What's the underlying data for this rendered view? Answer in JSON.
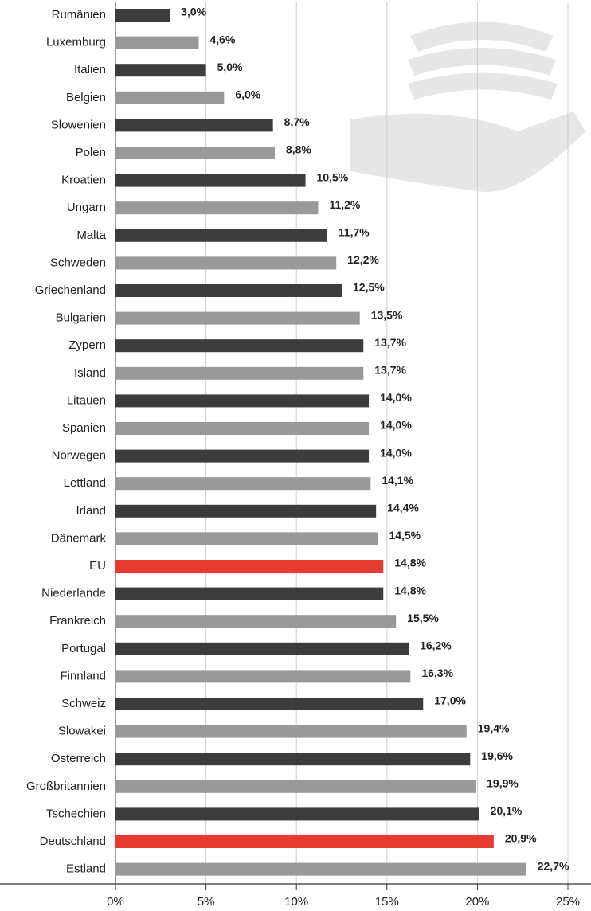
{
  "chart_data": {
    "type": "hbar",
    "categories": [
      "Rumänien",
      "Luxemburg",
      "Italien",
      "Belgien",
      "Slowenien",
      "Polen",
      "Kroatien",
      "Ungarn",
      "Malta",
      "Schweden",
      "Griechenland",
      "Bulgarien",
      "Zypern",
      "Island",
      "Litauen",
      "Spanien",
      "Norwegen",
      "Lettland",
      "Irland",
      "Dänemark",
      "EU",
      "Niederlande",
      "Frankreich",
      "Portugal",
      "Finnland",
      "Schweiz",
      "Slowakei",
      "Österreich",
      "Großbritannien",
      "Tschechien",
      "Deutschland",
      "Estland"
    ],
    "values": [
      3.0,
      4.6,
      5.0,
      6.0,
      8.7,
      8.8,
      10.5,
      11.2,
      11.7,
      12.2,
      12.5,
      13.5,
      13.7,
      13.7,
      14.0,
      14.0,
      14.0,
      14.1,
      14.4,
      14.5,
      14.8,
      14.8,
      15.5,
      16.2,
      16.3,
      17.0,
      19.4,
      19.6,
      19.9,
      20.1,
      20.9,
      22.7
    ],
    "value_labels": [
      "3,0%",
      "4,6%",
      "5,0%",
      "6,0%",
      "8,7%",
      "8,8%",
      "10,5%",
      "11,2%",
      "11,7%",
      "12,2%",
      "12,5%",
      "13,5%",
      "13,7%",
      "13,7%",
      "14,0%",
      "14,0%",
      "14,0%",
      "14,1%",
      "14,4%",
      "14,5%",
      "14,8%",
      "14,8%",
      "15,5%",
      "16,2%",
      "16,3%",
      "17,0%",
      "19,4%",
      "19,6%",
      "19,9%",
      "20,1%",
      "20,9%",
      "22,7%"
    ],
    "colors": [
      "#3c3c3c",
      "#999999",
      "#3c3c3c",
      "#999999",
      "#3c3c3c",
      "#999999",
      "#3c3c3c",
      "#999999",
      "#3c3c3c",
      "#999999",
      "#3c3c3c",
      "#999999",
      "#3c3c3c",
      "#999999",
      "#3c3c3c",
      "#999999",
      "#3c3c3c",
      "#999999",
      "#3c3c3c",
      "#999999",
      "#e63c2f",
      "#3c3c3c",
      "#999999",
      "#3c3c3c",
      "#999999",
      "#3c3c3c",
      "#999999",
      "#3c3c3c",
      "#999999",
      "#3c3c3c",
      "#e63c2f",
      "#999999"
    ],
    "xlim": [
      0,
      25
    ],
    "xticks": [
      {
        "value": 0,
        "label": "0%"
      },
      {
        "value": 5,
        "label": "5%"
      },
      {
        "value": 10,
        "label": "10%"
      },
      {
        "value": 15,
        "label": "15%"
      },
      {
        "value": 20,
        "label": "20%"
      },
      {
        "value": 25,
        "label": "25%"
      }
    ],
    "grid": true
  }
}
